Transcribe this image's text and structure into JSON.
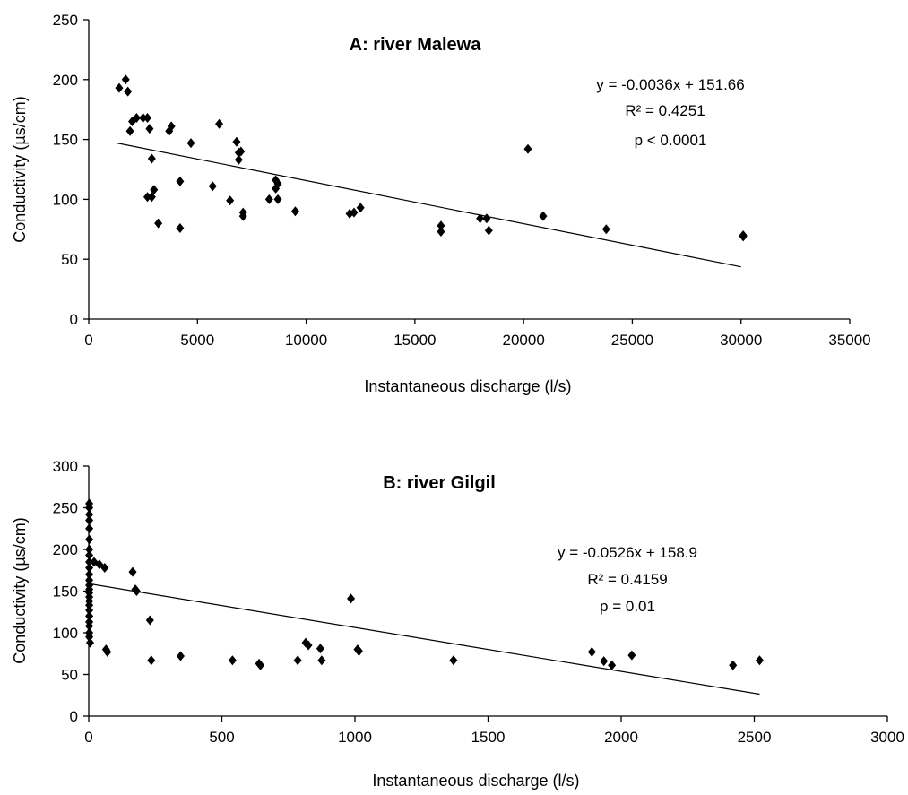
{
  "chart_data": [
    {
      "type": "scatter",
      "title": "A: river Malewa",
      "xlabel": "Instantaneous discharge (l/s)",
      "ylabel": "Conductivity (µs/cm)",
      "xlim": [
        0,
        35000
      ],
      "ylim": [
        0,
        250
      ],
      "xticks": [
        "0",
        "5000",
        "10000",
        "15000",
        "20000",
        "25000",
        "30000",
        "35000"
      ],
      "yticks": [
        "0",
        "50",
        "100",
        "150",
        "200",
        "250"
      ],
      "grid": false,
      "marker_color": "#000000",
      "annotation": [
        "y = -0.0036x + 151.66",
        "R² = 0.4251",
        "p < 0.0001"
      ],
      "trendline": {
        "slope": -0.0036,
        "intercept": 151.66,
        "x_range": [
          1300,
          30000
        ]
      },
      "series": [
        {
          "x": [
            1400,
            1700,
            1800,
            1900,
            2000,
            2200,
            2500,
            2700,
            2800,
            2900,
            2900,
            3000,
            3200,
            2700,
            3700,
            3800,
            4200,
            4200,
            4700,
            5700,
            6000,
            6500,
            6800,
            6900,
            6900,
            7000,
            7100,
            7100,
            8300,
            8600,
            8600,
            8700,
            8700,
            9500,
            12000,
            12200,
            12500,
            16200,
            16200,
            18000,
            18300,
            18400,
            20200,
            20900,
            23800,
            30100,
            30100
          ],
          "y": [
            193,
            200,
            190,
            157,
            165,
            168,
            168,
            168,
            159,
            134,
            102,
            108,
            80,
            102,
            157,
            161,
            115,
            76,
            147,
            111,
            163,
            99,
            148,
            133,
            139,
            140,
            89,
            86,
            100,
            109,
            116,
            100,
            113,
            90,
            88,
            89,
            93,
            78,
            73,
            84,
            84,
            74,
            142,
            86,
            75,
            69,
            70
          ]
        }
      ]
    },
    {
      "type": "scatter",
      "title": "B: river Gilgil",
      "xlabel": "Instantaneous discharge (l/s)",
      "ylabel": "Conductivity (µs/cm)",
      "xlim": [
        0,
        3000
      ],
      "ylim": [
        0,
        300
      ],
      "xticks": [
        "0",
        "500",
        "1000",
        "1500",
        "2000",
        "2500",
        "3000"
      ],
      "yticks": [
        "0",
        "50",
        "100",
        "150",
        "200",
        "250",
        "300"
      ],
      "grid": false,
      "marker_color": "#000000",
      "annotation": [
        "y = -0.0526x + 158.9",
        "R² = 0.4159",
        "p = 0.01"
      ],
      "trendline": {
        "slope": -0.0526,
        "intercept": 158.9,
        "x_range": [
          0,
          2520
        ]
      },
      "series": [
        {
          "x": [
            2,
            2,
            2,
            2,
            2,
            2,
            2,
            2,
            2,
            2,
            2,
            2,
            2,
            2,
            2,
            2,
            2,
            2,
            2,
            2,
            2,
            2,
            2,
            2,
            5,
            20,
            40,
            60,
            65,
            70,
            165,
            175,
            180,
            230,
            235,
            345,
            540,
            640,
            645,
            785,
            815,
            825,
            870,
            875,
            985,
            1010,
            1015,
            1370,
            1890,
            1935,
            1965,
            2040,
            2420,
            2520
          ],
          "y": [
            255,
            250,
            242,
            235,
            225,
            212,
            200,
            193,
            185,
            178,
            170,
            163,
            157,
            152,
            148,
            143,
            138,
            133,
            127,
            120,
            113,
            108,
            100,
            95,
            88,
            185,
            182,
            178,
            80,
            77,
            173,
            152,
            150,
            115,
            67,
            72,
            67,
            63,
            61,
            67,
            88,
            85,
            81,
            67,
            141,
            80,
            78,
            67,
            77,
            66,
            61,
            73,
            61,
            67
          ]
        }
      ]
    }
  ]
}
